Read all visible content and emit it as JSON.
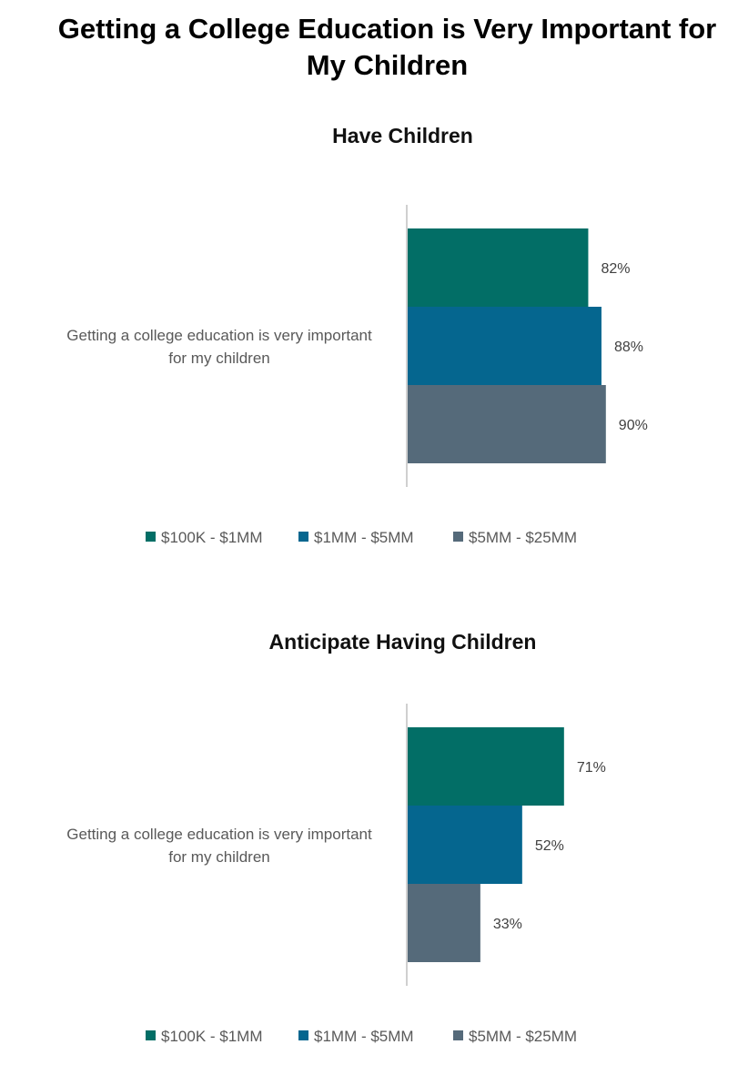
{
  "title": "Getting a College Education is Very Important for My Children",
  "colors": {
    "$100K - $1MM": "#026e66",
    "$1MM - $5MM": "#05668f",
    "$5MM - $25MM": "#556a7a"
  },
  "chart_data": [
    {
      "type": "bar",
      "orientation": "horizontal",
      "title": "Have Children",
      "categories": [
        "Getting a college education is very important for my children"
      ],
      "series": [
        {
          "name": "$100K - $1MM",
          "values": [
            82
          ]
        },
        {
          "name": "$1MM - $5MM",
          "values": [
            88
          ]
        },
        {
          "name": "$5MM - $25MM",
          "values": [
            90
          ]
        }
      ],
      "value_labels": [
        "82%",
        "88%",
        "90%"
      ],
      "unit": "%",
      "legend": "bottom"
    },
    {
      "type": "bar",
      "orientation": "horizontal",
      "title": "Anticipate Having Children",
      "categories": [
        "Getting a college education is very important for my children"
      ],
      "series": [
        {
          "name": "$100K - $1MM",
          "values": [
            71
          ]
        },
        {
          "name": "$1MM - $5MM",
          "values": [
            52
          ]
        },
        {
          "name": "$5MM - $25MM",
          "values": [
            33
          ]
        }
      ],
      "value_labels": [
        "71%",
        "52%",
        "33%"
      ],
      "unit": "%",
      "legend": "bottom"
    }
  ]
}
